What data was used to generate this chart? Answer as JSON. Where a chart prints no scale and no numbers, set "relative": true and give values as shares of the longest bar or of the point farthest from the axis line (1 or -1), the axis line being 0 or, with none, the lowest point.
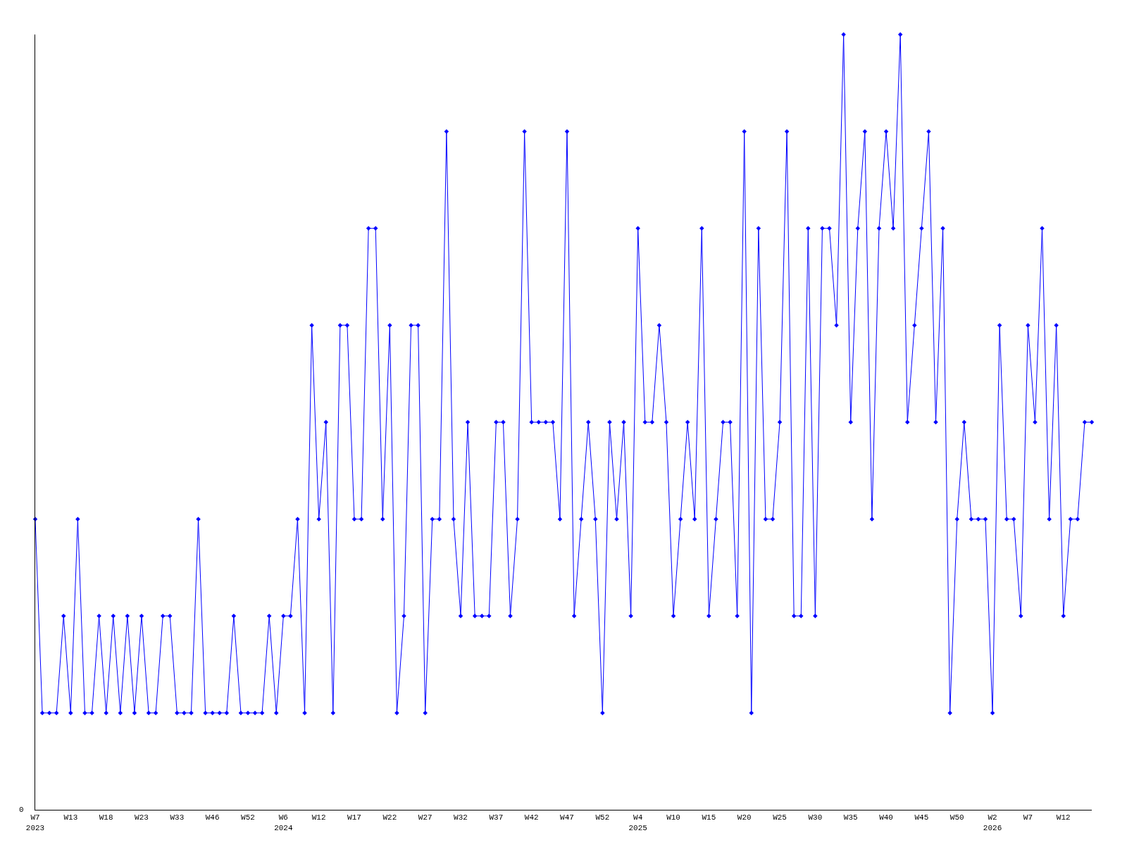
{
  "chart_data": {
    "type": "line",
    "relative": true,
    "color": "#0000ff",
    "marker": "diamond",
    "line_style": "solid",
    "annotations": [
      "0"
    ],
    "categories": [
      "W7\n2023",
      null,
      null,
      null,
      null,
      "W13",
      null,
      null,
      null,
      null,
      "W18",
      null,
      null,
      null,
      null,
      "W23",
      null,
      null,
      null,
      null,
      "W33",
      null,
      null,
      null,
      null,
      "W46",
      null,
      null,
      null,
      null,
      "W52",
      null,
      null,
      null,
      null,
      "W6\n2024",
      null,
      null,
      null,
      null,
      "W12",
      null,
      null,
      null,
      null,
      "W17",
      null,
      null,
      null,
      null,
      "W22",
      null,
      null,
      null,
      null,
      "W27",
      null,
      null,
      null,
      null,
      "W32",
      null,
      null,
      null,
      null,
      "W37",
      null,
      null,
      null,
      null,
      "W42",
      null,
      null,
      null,
      null,
      "W47",
      null,
      null,
      null,
      null,
      "W52",
      null,
      null,
      null,
      null,
      "W4\n2025",
      null,
      null,
      null,
      null,
      "W10",
      null,
      null,
      null,
      null,
      "W15",
      null,
      null,
      null,
      null,
      "W20",
      null,
      null,
      null,
      null,
      "W25",
      null,
      null,
      null,
      null,
      "W30",
      null,
      null,
      null,
      null,
      "W35",
      null,
      null,
      null,
      null,
      "W40",
      null,
      null,
      null,
      null,
      "W45",
      null,
      null,
      null,
      null,
      "W50",
      null,
      null,
      null,
      null,
      "W2\n2026",
      null,
      null,
      null,
      null,
      "W7",
      null,
      null,
      null,
      null,
      "W12",
      null,
      null,
      null,
      null
    ],
    "values": [
      0.375,
      0.125,
      0.125,
      0.125,
      0.25,
      0.125,
      0.375,
      0.125,
      0.125,
      0.25,
      0.125,
      0.25,
      0.125,
      0.25,
      0.125,
      0.25,
      0.125,
      0.125,
      0.25,
      0.25,
      0.125,
      0.125,
      0.125,
      0.375,
      0.125,
      0.125,
      0.125,
      0.125,
      0.25,
      0.125,
      0.125,
      0.125,
      0.125,
      0.25,
      0.125,
      0.25,
      0.25,
      0.375,
      0.125,
      0.625,
      0.375,
      0.5,
      0.125,
      0.625,
      0.625,
      0.375,
      0.375,
      0.75,
      0.75,
      0.375,
      0.625,
      0.125,
      0.25,
      0.625,
      0.625,
      0.125,
      0.375,
      0.375,
      0.875,
      0.375,
      0.25,
      0.5,
      0.25,
      0.25,
      0.25,
      0.5,
      0.5,
      0.25,
      0.375,
      0.875,
      0.5,
      0.5,
      0.5,
      0.5,
      0.375,
      0.875,
      0.25,
      0.375,
      0.5,
      0.375,
      0.125,
      0.5,
      0.375,
      0.5,
      0.25,
      0.75,
      0.5,
      0.5,
      0.625,
      0.5,
      0.25,
      0.375,
      0.5,
      0.375,
      0.75,
      0.25,
      0.375,
      0.5,
      0.5,
      0.25,
      0.875,
      0.125,
      0.75,
      0.375,
      0.375,
      0.5,
      0.875,
      0.25,
      0.25,
      0.75,
      0.25,
      0.75,
      0.75,
      0.625,
      1,
      0.5,
      0.75,
      0.875,
      0.375,
      0.75,
      0.875,
      0.75,
      1,
      0.5,
      0.625,
      0.75,
      0.875,
      0.5,
      0.75,
      0.125,
      0.375,
      0.5,
      0.375,
      0.375,
      0.375,
      0.125,
      0.625,
      0.375,
      0.375,
      0.25,
      0.625,
      0.5,
      0.75,
      0.375,
      0.625,
      0.25,
      0.375,
      0.375,
      0.5,
      0.5
    ]
  }
}
